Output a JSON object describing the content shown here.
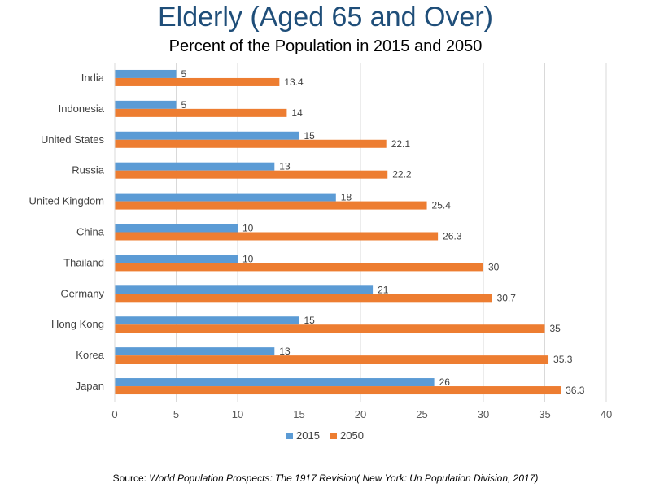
{
  "chart_data": {
    "type": "bar",
    "orientation": "horizontal",
    "title": "Elderly (Aged 65 and Over)",
    "subtitle": "Percent of the Population in 2015 and 2050",
    "categories": [
      "India",
      "Indonesia",
      "United States",
      "Russia",
      "United Kingdom",
      "China",
      "Thailand",
      "Germany",
      "Hong Kong",
      "Korea",
      "Japan"
    ],
    "series": [
      {
        "name": "2015",
        "color": "#5B9BD5",
        "values": [
          5,
          5,
          15,
          13,
          18,
          10,
          10,
          21,
          15,
          13,
          26
        ]
      },
      {
        "name": "2050",
        "color": "#ED7D31",
        "values": [
          13.4,
          14,
          22.1,
          22.2,
          25.4,
          26.3,
          30,
          30.7,
          35,
          35.3,
          36.3
        ]
      }
    ],
    "xlim": [
      0,
      40
    ],
    "xticks": [
      "0",
      "5",
      "10",
      "15",
      "20",
      "25",
      "30",
      "35",
      "40"
    ],
    "grid": true,
    "legend_position": "bottom",
    "data_labels": true
  },
  "source": {
    "prefix": "Source: ",
    "italic": "World Population Prospects: The 1917 Revision( New York: Un Population Division, 2017)"
  }
}
